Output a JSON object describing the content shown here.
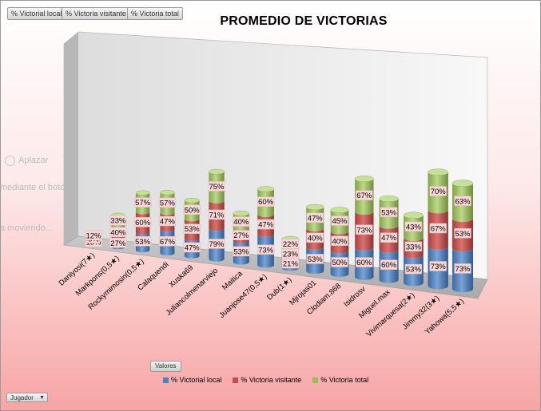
{
  "pivot_buttons": [
    "% Victorial local",
    "% Victoria visitante",
    "% Victoria total"
  ],
  "ghost_text": {
    "aplazar": "Aplazar",
    "mediante": "mediante el botón Modi",
    "moviendo": "a moviendo..."
  },
  "valores_label": "Valores",
  "filter": {
    "label": "Jugador"
  },
  "colors": {
    "local": "#4f81bd",
    "visitante": "#c0504d",
    "total": "#9bbb59"
  },
  "chart_data": {
    "type": "bar",
    "stacked": true,
    "style": "3d-cylinder",
    "title": "PROMEDIO DE VICTORIAS",
    "categories": [
      "Daniyosi(7★)",
      "Markpons(0,5★)",
      "Rockymimosin(0,5★)",
      "Calaquendi",
      "Xuska69",
      "Juliancolmenarviejo",
      "Maitica",
      "Juanjose47(0,5★)",
      "Dub(1★)",
      "Mjrojas01",
      "Clodiam.868",
      "Isidrosv",
      "Miguel.max",
      "Vivimarquesa(2★)",
      "Jimmy32(3★)",
      "Yahowa(5,5★)"
    ],
    "series": [
      {
        "name": "% Victorial local",
        "values": [
          15,
          27,
          53,
          67,
          47,
          79,
          53,
          73,
          21,
          53,
          50,
          60,
          60,
          53,
          73,
          73
        ]
      },
      {
        "name": "% Victoria visitante",
        "values": [
          8,
          40,
          60,
          47,
          53,
          71,
          27,
          47,
          23,
          40,
          40,
          73,
          47,
          33,
          67,
          53
        ]
      },
      {
        "name": "% Victoria total",
        "values": [
          12,
          33,
          57,
          57,
          50,
          75,
          40,
          60,
          22,
          47,
          45,
          67,
          53,
          43,
          70,
          63
        ]
      }
    ],
    "labels": [
      [
        "15%",
        "8%",
        "12%"
      ],
      [
        "27%",
        "40%",
        "33%"
      ],
      [
        "53%",
        "60%",
        "57%"
      ],
      [
        "67%",
        "47%",
        "57%"
      ],
      [
        "47%",
        "53%",
        "50%"
      ],
      [
        "79%",
        "71%",
        "75%"
      ],
      [
        "53%",
        "27%",
        "40%"
      ],
      [
        "73%",
        "47%",
        "60%"
      ],
      [
        "21%",
        "23%",
        "22%"
      ],
      [
        "53%",
        "40%",
        "47%"
      ],
      [
        "50%",
        "40%",
        "45%"
      ],
      [
        "60%",
        "73%",
        "67%"
      ],
      [
        "60%",
        "47%",
        "53%"
      ],
      [
        "53%",
        "33%",
        "43%"
      ],
      [
        "73%",
        "67%",
        "70%"
      ],
      [
        "73%",
        "53%",
        "63%"
      ]
    ],
    "legend_position": "bottom",
    "grid": false
  }
}
